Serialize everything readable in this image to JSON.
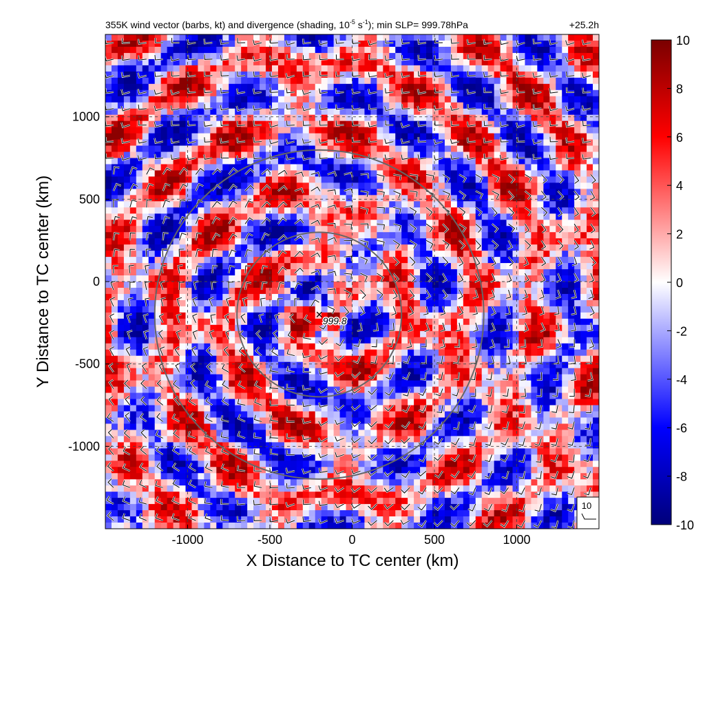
{
  "chart_data": {
    "type": "heatmap",
    "title_main": "355K wind vector (barbs, kt) and divergence (shading, 10",
    "title_exp": "-5",
    "title_unit": " s",
    "title_exp2": "-1",
    "title_tail": "); min SLP= 999.78hPa",
    "time_label": "+25.2h",
    "xlabel": "X Distance to TC center (km)",
    "ylabel": "Y Distance to TC center (km)",
    "xlim": [
      -1500,
      1500
    ],
    "ylim": [
      -1500,
      1500
    ],
    "xticks": [
      -1000,
      -500,
      0,
      500,
      1000
    ],
    "yticks": [
      -1000,
      -500,
      0,
      500,
      1000
    ],
    "grid": true,
    "colorbar": {
      "ticks": [
        -10,
        -8,
        -6,
        -4,
        -2,
        0,
        2,
        4,
        6,
        8,
        10
      ],
      "range": [
        -10,
        10
      ],
      "colormap": [
        "#00008b",
        "#0000ff",
        "#ffffff",
        "#ff0000",
        "#8b0000"
      ]
    },
    "center_marker": {
      "x": -200,
      "y": -200,
      "label": "999.8"
    },
    "range_rings_km": [
      500,
      1000
    ],
    "reference_barb": {
      "label": "10"
    }
  }
}
